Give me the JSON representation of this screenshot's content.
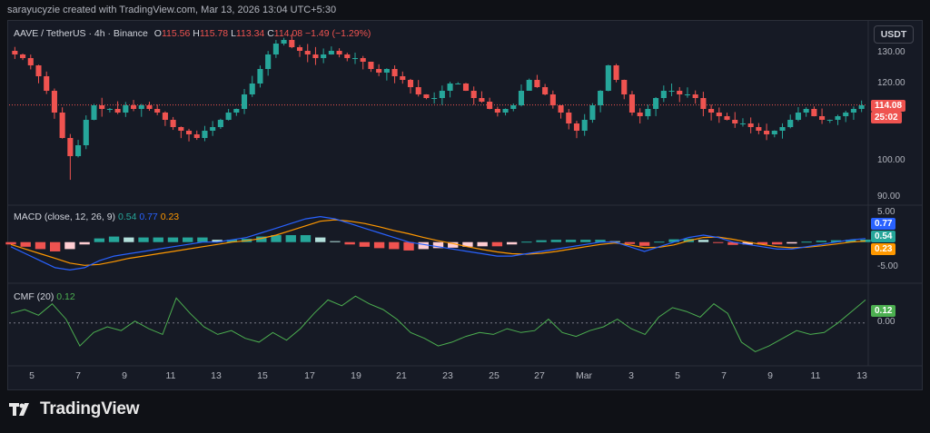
{
  "header": {
    "credit": "sarayucyzie created with TradingView.com, Mar 13, 2026 13:04 UTC+5:30"
  },
  "brand": {
    "name": "TradingView"
  },
  "currency_button": "USDT",
  "main_legend": {
    "symbol": "AAVE / TetherUS · 4h · Binance",
    "open_label": "O",
    "open": "115.56",
    "high_label": "H",
    "high": "115.78",
    "low_label": "L",
    "low": "113.34",
    "close_label": "C",
    "close": "114.08",
    "change": "−1.49 (−1.29%)"
  },
  "macd_legend": {
    "title": "MACD (close, 12, 26, 9)",
    "hist": "0.54",
    "macd": "0.77",
    "signal": "0.23"
  },
  "cmf_legend": {
    "title": "CMF (20)",
    "value": "0.12"
  },
  "price_tag": {
    "price": "114.08",
    "countdown": "25:02"
  },
  "macd_tags": {
    "macd": "0.77",
    "hist": "0.54",
    "signal": "0.23"
  },
  "cmf_tag": "0.12",
  "colors": {
    "up": "#26a69a",
    "down": "#ef5350",
    "macd": "#2962ff",
    "signal": "#ff9800",
    "cmf": "#4caf50",
    "bg": "#161a25"
  },
  "chart_data": [
    {
      "type": "candlestick",
      "title": "AAVE / TetherUS · 4h · Binance",
      "x_tick_labels": [
        "5",
        "7",
        "9",
        "11",
        "13",
        "15",
        "17",
        "19",
        "21",
        "23",
        "25",
        "27",
        "Mar",
        "3",
        "5",
        "7",
        "9",
        "11",
        "13"
      ],
      "y_tick_labels": [
        "130.00",
        "120.00",
        "100.00",
        "90.00"
      ],
      "ylim": [
        88,
        133
      ],
      "close_series_approx": [
        128,
        127,
        125,
        122,
        118,
        112,
        105,
        100,
        103,
        110,
        114,
        113,
        113,
        112,
        114,
        113,
        114,
        113,
        112,
        110,
        108,
        107,
        106,
        105,
        107,
        108,
        110,
        112,
        113,
        117,
        120,
        124,
        128,
        131,
        132,
        130,
        129,
        128,
        127,
        128,
        129,
        128,
        127,
        127,
        126,
        124,
        123,
        124,
        122,
        121,
        119,
        117,
        116,
        116,
        118,
        120,
        120,
        118,
        116,
        115,
        113,
        112,
        113,
        114,
        118,
        121,
        119,
        117,
        114,
        112,
        109,
        107,
        110,
        114,
        118,
        125,
        121,
        117,
        112,
        111,
        113,
        116,
        118,
        118,
        117,
        117,
        116,
        113,
        112,
        111,
        110,
        109,
        109,
        108,
        107,
        106,
        107,
        108,
        110,
        112,
        113,
        111,
        110,
        110,
        111,
        112,
        113,
        114
      ],
      "last_price": 114.08
    },
    {
      "type": "line",
      "title": "MACD (close, 12, 26, 9)",
      "y_tick_labels": [
        "5.00",
        "-5.00"
      ],
      "ylim": [
        -6.5,
        6
      ],
      "series": [
        {
          "name": "MACD",
          "values": [
            -1,
            -2.5,
            -4,
            -5.5,
            -6,
            -5.5,
            -4,
            -3,
            -2.5,
            -2,
            -1.5,
            -1,
            -0.5,
            0,
            0,
            0.5,
            1,
            2,
            3,
            4,
            5,
            5.5,
            5,
            4,
            3,
            2,
            1,
            0,
            -0.5,
            -1,
            -1.5,
            -2,
            -2.5,
            -3,
            -3,
            -2.5,
            -2,
            -1.5,
            -1,
            -0.5,
            0,
            0,
            -1,
            -2,
            -1,
            0,
            1,
            1.5,
            1,
            0,
            -0.5,
            -1,
            -1.5,
            -1.5,
            -1,
            -0.5,
            0,
            0.5,
            0.77
          ]
        },
        {
          "name": "Signal",
          "values": [
            -0.5,
            -1.5,
            -2.5,
            -3.5,
            -4.5,
            -5,
            -4.8,
            -4.2,
            -3.5,
            -3,
            -2.5,
            -2,
            -1.5,
            -1,
            -0.5,
            0,
            0.3,
            0.8,
            1.5,
            2.5,
            3.5,
            4.5,
            4.8,
            4.5,
            4,
            3.3,
            2.5,
            1.8,
            1,
            0.3,
            -0.3,
            -1,
            -1.6,
            -2.1,
            -2.5,
            -2.6,
            -2.4,
            -2,
            -1.5,
            -1,
            -0.5,
            -0.2,
            -0.6,
            -1.2,
            -1.1,
            -0.6,
            0.3,
            1,
            1.1,
            0.6,
            0,
            -0.5,
            -1,
            -1.2,
            -1.1,
            -0.8,
            -0.4,
            0,
            0.23
          ]
        }
      ],
      "last_values": {
        "macd": 0.77,
        "hist": 0.54,
        "signal": 0.23
      }
    },
    {
      "type": "line",
      "title": "CMF (20)",
      "y_tick_labels": [
        "0.00"
      ],
      "ylim": [
        -0.2,
        0.16
      ],
      "series": [
        {
          "name": "CMF",
          "values": [
            0.05,
            0.07,
            0.04,
            0.1,
            0.02,
            -0.12,
            -0.05,
            -0.02,
            -0.04,
            0.01,
            -0.03,
            -0.06,
            0.13,
            0.05,
            -0.02,
            -0.06,
            -0.04,
            -0.08,
            -0.1,
            -0.05,
            -0.09,
            -0.03,
            0.05,
            0.12,
            0.09,
            0.14,
            0.1,
            0.07,
            0.02,
            -0.05,
            -0.08,
            -0.12,
            -0.1,
            -0.07,
            -0.05,
            -0.06,
            -0.03,
            -0.05,
            -0.04,
            0.02,
            -0.05,
            -0.07,
            -0.04,
            -0.02,
            0.02,
            -0.03,
            -0.06,
            0.03,
            0.08,
            0.06,
            0.03,
            0.1,
            0.05,
            -0.1,
            -0.15,
            -0.12,
            -0.08,
            -0.04,
            -0.06,
            -0.05,
            0.0,
            0.06,
            0.12
          ]
        }
      ],
      "last_value": 0.12
    }
  ]
}
